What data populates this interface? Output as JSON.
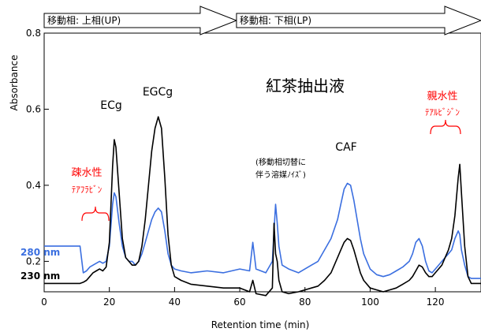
{
  "chart_data": {
    "type": "line",
    "title": "紅茶抽出液",
    "xlabel": "Retention time (min)",
    "ylabel": "Absorbance",
    "xlim": [
      0,
      134
    ],
    "ylim": [
      0.12,
      0.8
    ],
    "x_ticks": [
      0,
      20,
      40,
      60,
      80,
      100,
      120
    ],
    "y_ticks": [
      0.2,
      0.4,
      0.6,
      0.8
    ],
    "x_tick_labels": [
      "0",
      "20",
      "40",
      "60",
      "80",
      "100",
      "120"
    ],
    "y_tick_labels": [
      "0.2",
      "0.4",
      "0.6",
      "0.8"
    ],
    "phases": [
      {
        "label": "移動相: 上相(UP)",
        "x_start": 0,
        "x_end": 59
      },
      {
        "label": "移動相: 下相(LP)",
        "x_start": 59,
        "x_end": 134
      }
    ],
    "annotations": [
      {
        "text": "ECg",
        "x": 21.5,
        "y": 0.52,
        "color": "#000000"
      },
      {
        "text": "EGCg",
        "x": 35,
        "y": 0.58,
        "color": "#000000"
      },
      {
        "text": "CAF",
        "x": 93,
        "y": 0.41,
        "color": "#000000"
      },
      {
        "text": "(移動相切替に",
        "x": 72,
        "y": 0.4,
        "color": "#000000"
      },
      {
        "text": "伴う溶媒ﾉｲｽﾞ)",
        "x": 72,
        "y": 0.4,
        "color": "#000000"
      },
      {
        "text": "疎水性",
        "x": 16,
        "y": 0.23,
        "color": "#ff0000"
      },
      {
        "text": "ﾃｱﾌﾗﾋﾞﾝ",
        "x": 16,
        "y": 0.23,
        "color": "#ff0000"
      },
      {
        "text": "親水性",
        "x": 124,
        "y": 0.5,
        "color": "#ff0000"
      },
      {
        "text": "ﾃｱﾙﾋﾞｼﾞﾝ",
        "x": 124,
        "y": 0.5,
        "color": "#ff0000"
      }
    ],
    "series": [
      {
        "name": "280 nm",
        "color": "#3b6fe0",
        "x": [
          0,
          11,
          12,
          13,
          14,
          15,
          16,
          17,
          18,
          19,
          20,
          21,
          21.5,
          22,
          23,
          24,
          25,
          26,
          27,
          28,
          29,
          30,
          31,
          32,
          33,
          34,
          35,
          36,
          37,
          38,
          39,
          40,
          42,
          45,
          50,
          55,
          60,
          63,
          64,
          65,
          68,
          70,
          70.5,
          71,
          71.5,
          72,
          73,
          75,
          78,
          80,
          82,
          84,
          86,
          88,
          90,
          91,
          92,
          93,
          94,
          95,
          96,
          97,
          98,
          100,
          102,
          104,
          106,
          108,
          110,
          112,
          113,
          114,
          115,
          116,
          117,
          118,
          119,
          120,
          122,
          123,
          124,
          125,
          126,
          127,
          127.5,
          128,
          129,
          130,
          131,
          134
        ],
        "y": [
          0.24,
          0.24,
          0.17,
          0.175,
          0.185,
          0.19,
          0.195,
          0.2,
          0.195,
          0.2,
          0.24,
          0.35,
          0.38,
          0.37,
          0.3,
          0.24,
          0.21,
          0.2,
          0.2,
          0.19,
          0.2,
          0.22,
          0.25,
          0.28,
          0.31,
          0.33,
          0.34,
          0.33,
          0.28,
          0.22,
          0.19,
          0.18,
          0.175,
          0.17,
          0.175,
          0.17,
          0.18,
          0.175,
          0.25,
          0.18,
          0.17,
          0.2,
          0.28,
          0.35,
          0.3,
          0.24,
          0.19,
          0.18,
          0.17,
          0.18,
          0.19,
          0.2,
          0.23,
          0.26,
          0.31,
          0.35,
          0.39,
          0.405,
          0.4,
          0.36,
          0.31,
          0.26,
          0.22,
          0.18,
          0.165,
          0.16,
          0.165,
          0.175,
          0.185,
          0.2,
          0.22,
          0.25,
          0.26,
          0.24,
          0.2,
          0.175,
          0.17,
          0.18,
          0.2,
          0.21,
          0.22,
          0.23,
          0.26,
          0.28,
          0.27,
          0.23,
          0.19,
          0.16,
          0.155,
          0.155
        ]
      },
      {
        "name": "230 nm",
        "color": "#000000",
        "x": [
          0,
          11,
          12,
          13,
          14,
          15,
          16,
          17,
          18,
          19,
          20,
          21,
          21.5,
          22,
          23,
          24,
          25,
          26,
          27,
          28,
          29,
          30,
          31,
          32,
          33,
          34,
          35,
          36,
          37,
          38,
          39,
          40,
          42,
          45,
          50,
          55,
          60,
          63,
          64,
          65,
          68,
          70,
          70.5,
          71,
          71.5,
          72,
          73,
          75,
          78,
          80,
          82,
          84,
          86,
          88,
          90,
          91,
          92,
          93,
          94,
          95,
          96,
          97,
          98,
          100,
          102,
          104,
          106,
          108,
          110,
          112,
          113,
          114,
          115,
          116,
          117,
          118,
          119,
          120,
          122,
          123,
          124,
          125,
          126,
          127,
          127.5,
          128,
          129,
          130,
          131,
          134
        ],
        "y": [
          0.142,
          0.142,
          0.145,
          0.15,
          0.16,
          0.17,
          0.175,
          0.18,
          0.175,
          0.185,
          0.25,
          0.45,
          0.52,
          0.5,
          0.38,
          0.26,
          0.21,
          0.2,
          0.19,
          0.19,
          0.2,
          0.24,
          0.31,
          0.4,
          0.49,
          0.55,
          0.58,
          0.55,
          0.42,
          0.27,
          0.19,
          0.16,
          0.15,
          0.14,
          0.135,
          0.13,
          0.13,
          0.12,
          0.15,
          0.115,
          0.11,
          0.13,
          0.3,
          0.22,
          0.2,
          0.15,
          0.12,
          0.115,
          0.12,
          0.125,
          0.13,
          0.135,
          0.15,
          0.17,
          0.21,
          0.23,
          0.25,
          0.26,
          0.255,
          0.23,
          0.2,
          0.17,
          0.15,
          0.13,
          0.125,
          0.12,
          0.125,
          0.13,
          0.14,
          0.15,
          0.16,
          0.175,
          0.19,
          0.185,
          0.17,
          0.16,
          0.16,
          0.17,
          0.19,
          0.21,
          0.23,
          0.26,
          0.32,
          0.42,
          0.455,
          0.38,
          0.24,
          0.16,
          0.142,
          0.142
        ]
      }
    ]
  }
}
